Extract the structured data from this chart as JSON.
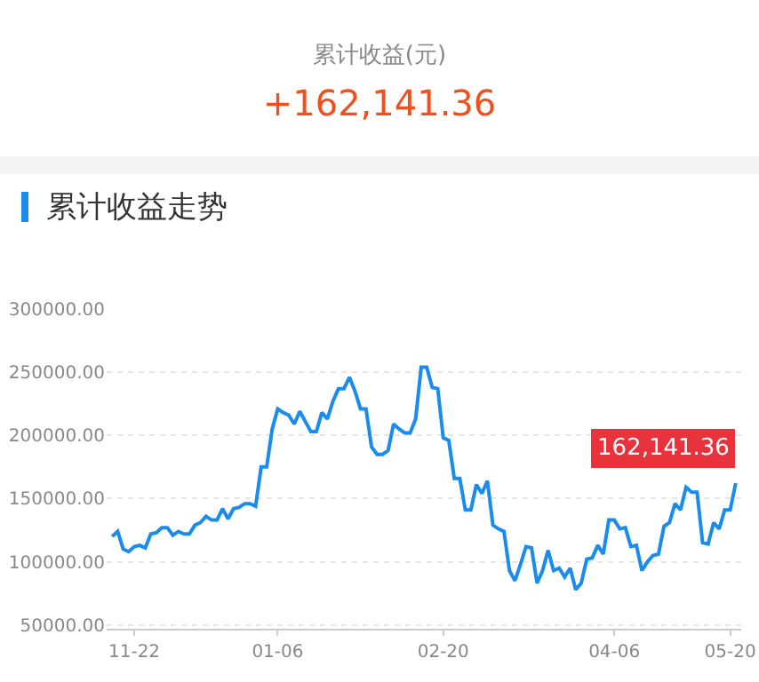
{
  "chart_data": {
    "type": "line",
    "title": "累计收益走势",
    "annotations": [
      "累计收益(元)",
      "+162,141.36",
      "162,141.36"
    ],
    "categories": [
      null,
      null,
      null,
      null,
      "11-22",
      null,
      null,
      null,
      null,
      null,
      null,
      null,
      null,
      null,
      null,
      null,
      null,
      null,
      null,
      null,
      null,
      null,
      null,
      null,
      null,
      null,
      null,
      null,
      null,
      null,
      "01-06",
      null,
      null,
      null,
      null,
      null,
      null,
      null,
      null,
      null,
      null,
      null,
      null,
      null,
      null,
      null,
      null,
      null,
      null,
      null,
      null,
      null,
      null,
      null,
      null,
      null,
      null,
      null,
      null,
      null,
      "02-20",
      null,
      null,
      null,
      null,
      null,
      null,
      null,
      null,
      null,
      null,
      null,
      null,
      null,
      null,
      null,
      null,
      null,
      null,
      null,
      null,
      null,
      null,
      null,
      null,
      null,
      null,
      null,
      null,
      null,
      null,
      "04-06",
      null,
      null,
      null,
      null,
      null,
      null,
      null,
      null,
      null,
      null,
      null,
      null,
      null,
      null,
      null,
      null,
      null,
      null,
      null,
      null,
      "05-20",
      null
    ],
    "series": [
      {
        "color": "#1a8ceb",
        "values": [
          120000,
          124000,
          110000,
          108000,
          112000,
          113000,
          111000,
          122000,
          123000,
          127000,
          127000,
          121000,
          124000,
          122000,
          122000,
          129000,
          131000,
          136000,
          133000,
          133000,
          142000,
          134000,
          142000,
          143000,
          146000,
          146000,
          144000,
          175000,
          175000,
          205000,
          221000,
          218000,
          216000,
          209000,
          219000,
          211000,
          203000,
          203000,
          218000,
          213000,
          227000,
          237000,
          237000,
          246000,
          235000,
          221000,
          221000,
          191000,
          185000,
          185000,
          188000,
          209000,
          205000,
          202000,
          202000,
          213000,
          254000,
          254000,
          238000,
          237000,
          198000,
          196000,
          166000,
          166000,
          141000,
          141000,
          161000,
          154000,
          164000,
          129000,
          126000,
          124000,
          93000,
          85000,
          98000,
          112000,
          111000,
          83000,
          93000,
          109000,
          93000,
          95000,
          88000,
          95000,
          78000,
          83000,
          102000,
          103000,
          113000,
          106000,
          133000,
          133000,
          126000,
          127000,
          112000,
          113000,
          93000,
          100000,
          105000,
          106000,
          128000,
          131000,
          146000,
          141000,
          159000,
          155000,
          155000,
          115000,
          114000,
          131000,
          126000,
          141000,
          141000,
          162141.36
        ]
      }
    ],
    "ylim": [
      47000,
      300000
    ],
    "yticks": [
      {
        "value": 50000,
        "label": "50000.00"
      },
      {
        "value": 100000,
        "label": "100000.00"
      },
      {
        "value": 150000,
        "label": "150000.00"
      },
      {
        "value": 200000,
        "label": "200000.00"
      },
      {
        "value": 250000,
        "label": "250000.00"
      },
      {
        "value": 300000,
        "label": "300000.00"
      }
    ],
    "grid": "y"
  }
}
